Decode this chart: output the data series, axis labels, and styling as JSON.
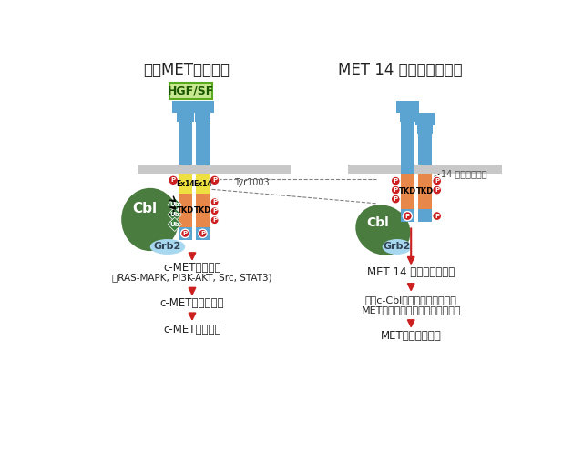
{
  "title_left": "正常MET信号通路",
  "title_right": "MET 14 外显子跳跃突变",
  "bg_color": "#ffffff",
  "blue_color": "#5ba3d0",
  "orange_color": "#e8874a",
  "yellow_color": "#eee040",
  "green_color": "#4a7c3f",
  "red_color": "#cc2020",
  "gray_color": "#c0c0c0",
  "light_blue_color": "#a8d8f0",
  "diamond_green": "#3a8040",
  "hgf_bg": "#c8e890",
  "hgf_border": "#5aaa20",
  "text_bottom_left1": "c-MET受体激活",
  "text_bottom_left2": "（RAS-MAPK, PI3K-AKT, Src, STAT3)",
  "text_bottom_left3": "c-MET受体内在化",
  "text_bottom_left4": "c-MET受体降解",
  "text_bottom_right1": "MET 14 外显子跳跃突变",
  "text_bottom_right2": "含有c-Cbl的近膜结构域缺失，",
  "text_bottom_right3": "MET蛋白泛素化障碍及降解率减低",
  "text_bottom_right4": "MET通路持续激活",
  "label_ex14": "Ex14",
  "label_tkd": "TKD",
  "label_ub": "Ub",
  "label_cbl": "Cbl",
  "label_grb2": "Grb2",
  "label_p": "P",
  "label_tyr": "Tyr1003",
  "label_14skip": "14 外显子跳跃突",
  "label_hgfsf": "HGF/SF"
}
